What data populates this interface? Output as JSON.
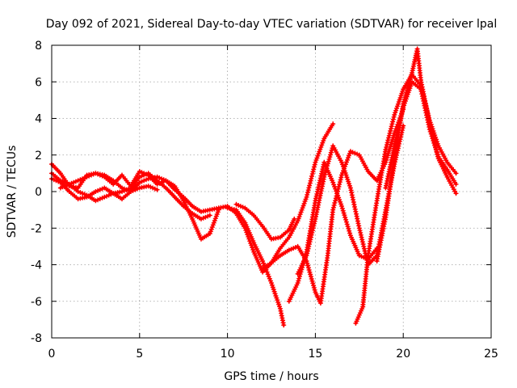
{
  "chart_data": {
    "type": "scatter",
    "title": "Day 092 of 2021, Sidereal Day-to-day VTEC variation (SDTVAR) for receiver lpal",
    "xlabel": "GPS time / hours",
    "ylabel": "SDTVAR / TECUs",
    "xlim": [
      0,
      25
    ],
    "ylim": [
      -8,
      8
    ],
    "xticks": [
      "0",
      "5",
      "10",
      "15",
      "20",
      "25"
    ],
    "yticks": [
      "-8",
      "-6",
      "-4",
      "-2",
      "0",
      "2",
      "4",
      "6",
      "8"
    ],
    "grid": true,
    "marker": "plus",
    "color": "#ff0000",
    "series": [
      {
        "x": [
          0.0,
          0.5,
          1.0,
          1.5,
          2.0,
          2.5,
          3.0,
          3.5,
          4.0,
          4.5,
          5.0,
          5.5,
          6.0,
          6.5,
          7.0,
          7.5,
          8.0,
          8.5,
          9.0,
          9.5
        ],
        "y": [
          1.5,
          1.0,
          0.3,
          0.2,
          0.9,
          1.0,
          0.8,
          0.4,
          0.9,
          0.3,
          1.1,
          0.9,
          0.4,
          0.6,
          0.3,
          -0.5,
          -1.5,
          -2.6,
          -2.3,
          -1.0
        ]
      },
      {
        "x": [
          0.0,
          0.5,
          1.0,
          1.5,
          2.0,
          2.5,
          3.0,
          3.5,
          4.0,
          4.5,
          5.0,
          5.5,
          6.0,
          6.5,
          7.0,
          7.5,
          8.0,
          8.5,
          9.0,
          9.5
        ],
        "y": [
          0.7,
          0.5,
          0.0,
          -0.4,
          -0.3,
          0.0,
          0.2,
          -0.1,
          -0.4,
          0.0,
          0.5,
          0.7,
          0.8,
          0.6,
          0.1,
          -0.3,
          -0.8,
          -1.1,
          -1.0,
          -0.9
        ]
      },
      {
        "x": [
          0.0,
          0.5,
          1.0,
          1.5,
          2.0,
          2.5,
          3.0,
          3.5,
          4.0,
          4.5,
          5.0,
          5.5,
          6.0,
          6.5,
          7.0,
          7.5,
          8.0,
          8.5,
          9.0
        ],
        "y": [
          1.0,
          0.6,
          0.4,
          0.0,
          -0.2,
          -0.5,
          -0.3,
          -0.1,
          0.0,
          0.2,
          0.8,
          1.0,
          0.6,
          0.2,
          -0.3,
          -0.8,
          -1.2,
          -1.5,
          -1.3
        ]
      },
      {
        "x": [
          0.5,
          1.0,
          1.5,
          2.0,
          2.5,
          3.0,
          3.5,
          4.0,
          4.5,
          5.0,
          5.5,
          6.0
        ],
        "y": [
          0.2,
          0.4,
          0.6,
          0.8,
          1.0,
          0.9,
          0.6,
          0.2,
          0.0,
          0.2,
          0.3,
          0.1
        ]
      },
      {
        "x": [
          9.5,
          10.0,
          10.5,
          11.0,
          11.5,
          12.0,
          12.5,
          13.0,
          13.5,
          14.0,
          14.5,
          15.0,
          15.5,
          16.0
        ],
        "y": [
          -0.9,
          -0.8,
          -1.2,
          -2.0,
          -3.3,
          -4.4,
          -3.9,
          -3.1,
          -2.5,
          -1.6,
          -0.3,
          1.6,
          2.9,
          3.7
        ]
      },
      {
        "x": [
          10.0,
          10.5,
          11.0,
          11.5,
          12.0,
          12.5,
          13.0,
          13.2
        ],
        "y": [
          -0.9,
          -1.0,
          -1.7,
          -2.8,
          -3.8,
          -5.0,
          -6.4,
          -7.3
        ]
      },
      {
        "x": [
          10.5,
          11.0,
          11.5,
          12.0,
          12.5,
          13.0,
          13.5,
          13.8
        ],
        "y": [
          -0.7,
          -0.9,
          -1.3,
          -1.9,
          -2.6,
          -2.5,
          -2.1,
          -1.5
        ]
      },
      {
        "x": [
          12.0,
          12.5,
          13.0,
          13.5,
          14.0,
          14.5,
          15.0,
          15.3,
          15.7,
          16.0,
          16.5,
          17.0,
          17.5,
          18.0,
          18.5,
          19.0,
          19.5,
          20.0
        ],
        "y": [
          -4.2,
          -3.9,
          -3.5,
          -3.2,
          -3.0,
          -3.8,
          -5.5,
          -6.1,
          -3.5,
          -1.0,
          0.9,
          2.2,
          2.0,
          1.1,
          0.6,
          1.6,
          3.2,
          4.5
        ]
      },
      {
        "x": [
          13.5,
          14.0,
          14.5,
          15.0,
          15.5,
          16.0,
          16.5,
          17.0,
          17.5,
          18.0,
          18.5
        ],
        "y": [
          -6.0,
          -5.0,
          -3.3,
          -0.5,
          1.6,
          0.5,
          -0.8,
          -2.4,
          -3.5,
          -3.7,
          -3.1
        ]
      },
      {
        "x": [
          14.0,
          14.5,
          15.0,
          15.5,
          16.0,
          16.5,
          17.0,
          17.5,
          18.0,
          18.5,
          19.0,
          19.5,
          20.0
        ],
        "y": [
          -4.5,
          -3.5,
          -1.5,
          0.8,
          2.5,
          1.6,
          0.2,
          -2.0,
          -4.0,
          -3.5,
          -1.0,
          1.5,
          3.6
        ]
      },
      {
        "x": [
          17.3,
          17.7,
          18.0,
          18.5,
          19.0,
          19.5,
          20.0,
          20.5,
          21.0,
          21.5,
          22.0,
          22.5,
          23.0
        ],
        "y": [
          -7.2,
          -6.3,
          -3.5,
          -0.5,
          2.3,
          4.2,
          5.6,
          6.4,
          5.8,
          3.9,
          2.5,
          1.6,
          1.0
        ]
      },
      {
        "x": [
          18.5,
          19.0,
          19.5,
          20.0,
          20.5,
          20.8,
          21.0,
          21.5,
          22.0,
          22.5,
          23.0
        ],
        "y": [
          -3.8,
          -1.4,
          1.8,
          4.8,
          6.5,
          7.8,
          6.1,
          3.7,
          1.8,
          0.8,
          -0.1
        ]
      },
      {
        "x": [
          19.0,
          19.5,
          20.0,
          20.5,
          21.0,
          21.5,
          22.0,
          22.5,
          23.0
        ],
        "y": [
          0.2,
          2.5,
          4.6,
          6.0,
          5.6,
          3.4,
          1.9,
          1.2,
          0.4
        ]
      }
    ]
  }
}
